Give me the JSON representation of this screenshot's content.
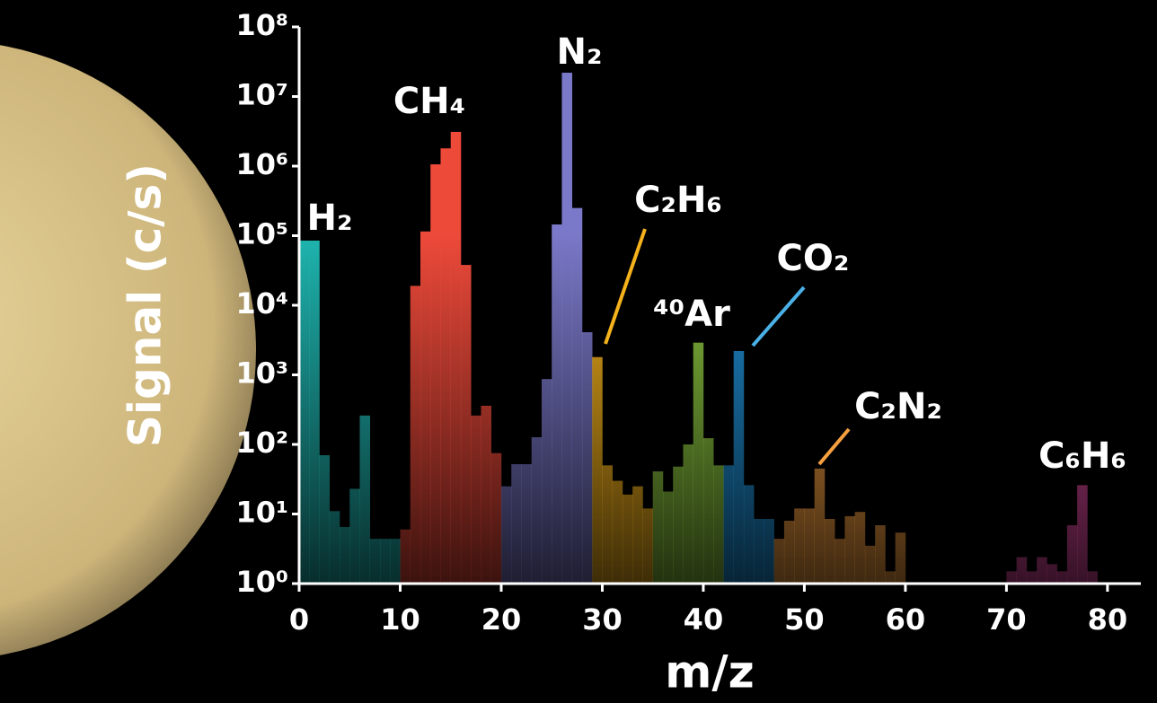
{
  "chart_data": {
    "type": "histogram",
    "xlabel": "m/z",
    "ylabel": "Signal (c/s)",
    "xlim": [
      0,
      83.3
    ],
    "xticks": [
      0,
      10,
      20,
      30,
      40,
      50,
      60,
      70,
      80
    ],
    "ylim": [
      1,
      100000000
    ],
    "yscale": "log",
    "yticks": [
      {
        "value": 1,
        "label": "10⁰"
      },
      {
        "value": 10,
        "label": "10¹"
      },
      {
        "value": 100,
        "label": "10²"
      },
      {
        "value": 1000,
        "label": "10³"
      },
      {
        "value": 10000,
        "label": "10⁴"
      },
      {
        "value": 100000,
        "label": "10⁵"
      },
      {
        "value": 1000000,
        "label": "10⁶"
      },
      {
        "value": 10000000,
        "label": "10⁷"
      },
      {
        "value": 100000000,
        "label": "10⁸"
      }
    ],
    "series": [
      {
        "color": "#1fb5b0",
        "bins": [
          0,
          1,
          2,
          3,
          4,
          5,
          6,
          7,
          8,
          9,
          10
        ],
        "values": [
          85000,
          85000,
          70,
          11,
          6.5,
          23,
          260,
          4.4,
          4.4,
          4.4
        ]
      },
      {
        "color": "#ee4a3a",
        "bins": [
          10,
          11,
          12,
          13,
          14,
          15,
          16,
          17,
          18,
          19,
          20
        ],
        "values": [
          6,
          19000,
          115000,
          1060000,
          1800000,
          3100000,
          38000,
          260,
          360,
          75
        ]
      },
      {
        "color": "#7a78c8",
        "bins": [
          20,
          21,
          22,
          23,
          24,
          25,
          26,
          27,
          28,
          29
        ],
        "values": [
          25,
          52,
          52,
          127,
          870,
          145000,
          22000000,
          250000,
          4100
        ]
      },
      {
        "color": "#f5b21c",
        "bins": [
          29,
          30,
          31,
          32,
          33,
          34,
          35
        ],
        "values": [
          1800,
          50,
          30,
          19,
          25,
          12
        ]
      },
      {
        "color": "#8cc63f",
        "bins": [
          35,
          36,
          37,
          38,
          39,
          40,
          41,
          42
        ],
        "values": [
          41,
          21,
          48,
          100,
          2900,
          123,
          50
        ]
      },
      {
        "color": "#1f90d6",
        "bins": [
          42,
          43,
          44,
          45,
          46,
          47
        ],
        "values": [
          50,
          2200,
          26,
          8.5,
          8.5
        ]
      },
      {
        "color": "#f7a040",
        "bins": [
          47,
          48,
          49,
          50,
          51,
          52,
          53,
          54,
          55,
          56,
          57,
          58,
          59,
          60
        ],
        "values": [
          4.4,
          8,
          12,
          12,
          45,
          8.5,
          4.4,
          9.3,
          10.7,
          3.5,
          6.9,
          1.5,
          5.4
        ]
      },
      {
        "color": "#d9479b",
        "bins": [
          70,
          71,
          72,
          73,
          74,
          75,
          76,
          77,
          78,
          79
        ],
        "values": [
          1.5,
          2.4,
          1.5,
          2.4,
          1.9,
          1.5,
          6.9,
          26,
          1.5
        ]
      }
    ],
    "annotations": [
      "H₂",
      "CH₄",
      "N₂",
      "C₂H₆",
      "⁴⁰Ar",
      "CO₂",
      "C₂N₂",
      "C₆H₆"
    ]
  }
}
